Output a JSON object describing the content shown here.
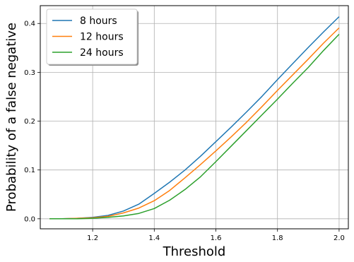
{
  "chart_data": {
    "type": "line",
    "title": "",
    "xlabel": "Threshold",
    "ylabel": "Probability of a false negative",
    "xlim": [
      1.03,
      2.03
    ],
    "ylim": [
      -0.0205,
      0.4365
    ],
    "grid": true,
    "legend_position": "top-left",
    "x_ticks": [
      1.2,
      1.4,
      1.6,
      1.8,
      2.0
    ],
    "x_tick_labels": [
      "1.2",
      "1.4",
      "1.6",
      "1.8",
      "2.0"
    ],
    "y_ticks": [
      0.0,
      0.1,
      0.2,
      0.3,
      0.4
    ],
    "y_tick_labels": [
      "0.0",
      "0.1",
      "0.2",
      "0.3",
      "0.4"
    ],
    "series": [
      {
        "name": "8 hours",
        "color": "#1f77b4",
        "x": [
          1.06,
          1.1,
          1.15,
          1.2,
          1.25,
          1.3,
          1.35,
          1.4,
          1.45,
          1.5,
          1.55,
          1.6,
          1.65,
          1.7,
          1.75,
          1.8,
          1.85,
          1.9,
          1.95,
          2.0
        ],
        "y": [
          0.0,
          0.0,
          0.001,
          0.003,
          0.007,
          0.016,
          0.03,
          0.052,
          0.075,
          0.1,
          0.128,
          0.158,
          0.188,
          0.219,
          0.251,
          0.285,
          0.318,
          0.351,
          0.383,
          0.414
        ]
      },
      {
        "name": "12 hours",
        "color": "#ff7f0e",
        "x": [
          1.06,
          1.1,
          1.15,
          1.2,
          1.25,
          1.3,
          1.35,
          1.4,
          1.45,
          1.5,
          1.55,
          1.6,
          1.65,
          1.7,
          1.75,
          1.8,
          1.85,
          1.9,
          1.95,
          2.0
        ],
        "y": [
          0.0,
          0.0,
          0.001,
          0.002,
          0.005,
          0.012,
          0.022,
          0.037,
          0.058,
          0.084,
          0.111,
          0.139,
          0.168,
          0.198,
          0.23,
          0.263,
          0.295,
          0.327,
          0.36,
          0.391
        ]
      },
      {
        "name": "24 hours",
        "color": "#2ca02c",
        "x": [
          1.06,
          1.1,
          1.15,
          1.2,
          1.25,
          1.3,
          1.35,
          1.4,
          1.45,
          1.5,
          1.55,
          1.6,
          1.65,
          1.7,
          1.75,
          1.8,
          1.85,
          1.9,
          1.95,
          2.0
        ],
        "y": [
          0.0,
          0.0,
          0.0,
          0.001,
          0.003,
          0.006,
          0.011,
          0.021,
          0.038,
          0.06,
          0.086,
          0.117,
          0.149,
          0.181,
          0.213,
          0.245,
          0.278,
          0.31,
          0.345,
          0.378
        ]
      }
    ]
  }
}
